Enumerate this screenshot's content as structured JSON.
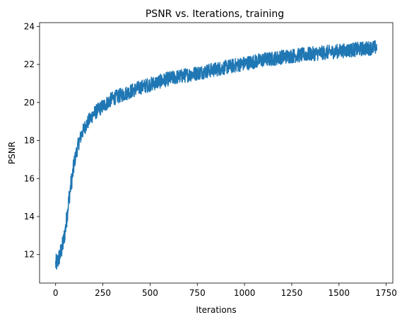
{
  "chart_data": {
    "type": "line",
    "title": "PSNR vs. Iterations, training",
    "xlabel": "Iterations",
    "ylabel": "PSNR",
    "xlim": [
      -85,
      1785
    ],
    "ylim": [
      10.5,
      24.2
    ],
    "xticks": [
      0,
      250,
      500,
      750,
      1000,
      1250,
      1500,
      1750
    ],
    "yticks": [
      12,
      14,
      16,
      18,
      20,
      22,
      24
    ],
    "grid": false,
    "color": "#1f77b4",
    "series": [
      {
        "x": [
          0,
          10,
          20,
          30,
          40,
          50,
          60,
          70,
          80,
          90,
          100,
          120,
          140,
          160,
          180,
          200,
          225,
          250,
          275,
          300,
          350,
          400,
          450,
          500,
          550,
          600,
          650,
          700,
          750,
          800,
          850,
          900,
          950,
          1000,
          1050,
          1100,
          1150,
          1200,
          1250,
          1300,
          1350,
          1400,
          1450,
          1500,
          1550,
          1600,
          1650,
          1700
        ],
        "y": [
          11.5,
          11.6,
          11.9,
          12.2,
          12.6,
          13.2,
          14.0,
          14.9,
          15.6,
          16.2,
          16.9,
          17.8,
          18.4,
          18.8,
          19.1,
          19.4,
          19.6,
          19.8,
          20.0,
          20.2,
          20.4,
          20.6,
          20.8,
          20.95,
          21.1,
          21.25,
          21.35,
          21.45,
          21.55,
          21.65,
          21.75,
          21.85,
          21.95,
          22.05,
          22.15,
          22.25,
          22.3,
          22.4,
          22.45,
          22.5,
          22.55,
          22.6,
          22.65,
          22.7,
          22.75,
          22.8,
          22.85,
          22.9
        ]
      }
    ]
  }
}
